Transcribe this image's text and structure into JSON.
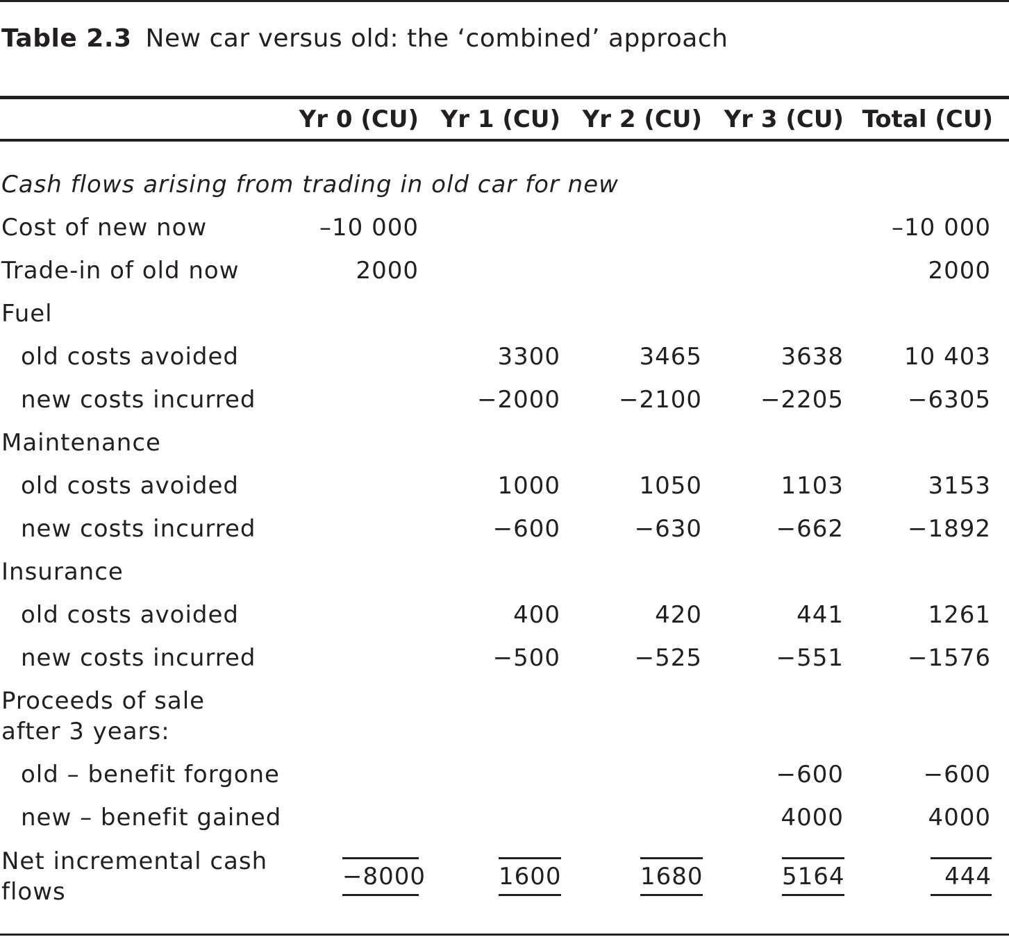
{
  "caption": {
    "label": "Table 2.3",
    "title": "New car versus old: the ‘combined’ approach"
  },
  "header": {
    "col0": "Yr 0 (CU)",
    "col1": "Yr 1 (CU)",
    "col2": "Yr 2 (CU)",
    "col3": "Yr 3 (CU)",
    "total": "Total (CU)"
  },
  "rows": {
    "section": {
      "label": "Cash flows arising from trading in old car for new"
    },
    "cost_new": {
      "label": "Cost of new now",
      "yr0": "–10 000",
      "total": "–10 000"
    },
    "trade_in": {
      "label": "Trade-in of old now",
      "yr0": "2000",
      "total": "2000"
    },
    "fuel": {
      "label": "Fuel"
    },
    "fuel_old": {
      "label": "old costs avoided",
      "yr1": "3300",
      "yr2": "3465",
      "yr3": "3638",
      "total": "10 403"
    },
    "fuel_new": {
      "label": "new costs incurred",
      "yr1": "−2000",
      "yr2": "−2100",
      "yr3": "−2205",
      "total": "−6305"
    },
    "maint": {
      "label": "Maintenance"
    },
    "maint_old": {
      "label": "old costs avoided",
      "yr1": "1000",
      "yr2": "1050",
      "yr3": "1103",
      "total": "3153"
    },
    "maint_new": {
      "label": "new costs incurred",
      "yr1": "−600",
      "yr2": "−630",
      "yr3": "−662",
      "total": "−1892"
    },
    "ins": {
      "label": "Insurance"
    },
    "ins_old": {
      "label": "old costs avoided",
      "yr1": "400",
      "yr2": "420",
      "yr3": "441",
      "total": "1261"
    },
    "ins_new": {
      "label": "new costs incurred",
      "yr1": "−500",
      "yr2": "−525",
      "yr3": "−551",
      "total": "−1576"
    },
    "proceeds": {
      "label": "Proceeds of sale after 3 years:"
    },
    "proc_old": {
      "label": "old – benefit forgone",
      "yr3": "−600",
      "total": "−600"
    },
    "proc_new": {
      "label": "new – benefit gained",
      "yr3": "4000",
      "total": "4000"
    },
    "net": {
      "label": "Net incremental cash flows",
      "yr0": "−8000",
      "yr1": "1600",
      "yr2": "1680",
      "yr3": "5164",
      "total": "444"
    }
  }
}
